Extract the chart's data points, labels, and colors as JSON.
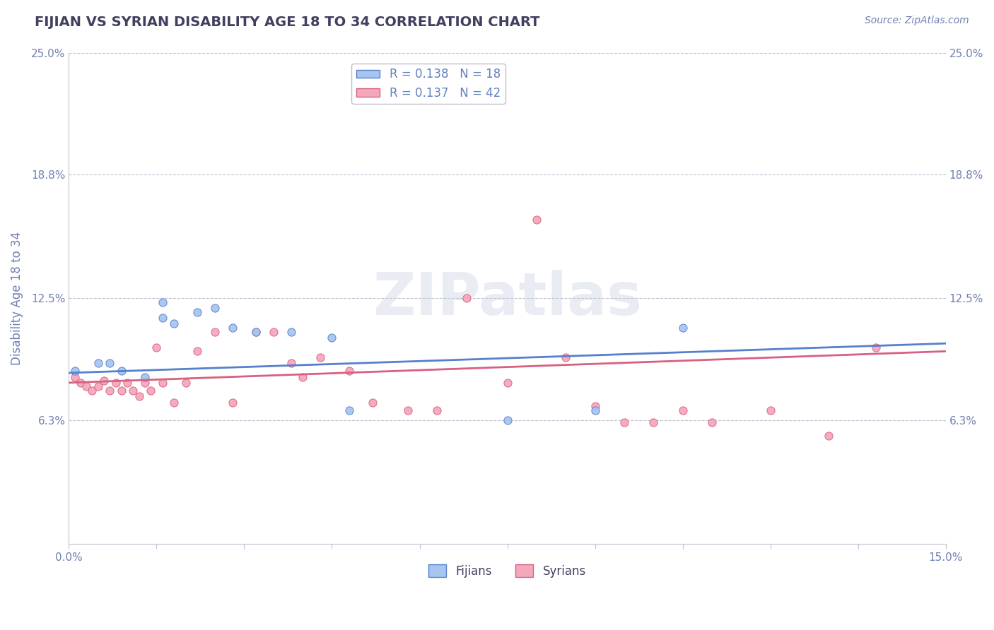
{
  "title": "FIJIAN VS SYRIAN DISABILITY AGE 18 TO 34 CORRELATION CHART",
  "source": "Source: ZipAtlas.com",
  "ylabel_label": "Disability Age 18 to 34",
  "xlim": [
    0.0,
    0.15
  ],
  "ylim": [
    0.0,
    0.25
  ],
  "xticks": [
    0.0,
    0.015,
    0.03,
    0.045,
    0.06,
    0.075,
    0.09,
    0.105,
    0.12,
    0.135,
    0.15
  ],
  "xticklabels": [
    "0.0%",
    "",
    "",
    "",
    "",
    "",
    "",
    "",
    "",
    "",
    "15.0%"
  ],
  "ytick_positions": [
    0.0,
    0.063,
    0.125,
    0.188,
    0.25
  ],
  "yticklabels": [
    "",
    "6.3%",
    "12.5%",
    "18.8%",
    "25.0%"
  ],
  "fijian_color": "#a8c4f0",
  "syrian_color": "#f5a8bc",
  "fijian_line_color": "#5580cc",
  "syrian_line_color": "#d86080",
  "R_fijian": 0.138,
  "N_fijian": 18,
  "R_syrian": 0.137,
  "N_syrian": 42,
  "fijian_scatter_x": [
    0.001,
    0.005,
    0.007,
    0.009,
    0.013,
    0.016,
    0.016,
    0.018,
    0.022,
    0.025,
    0.028,
    0.032,
    0.038,
    0.045,
    0.048,
    0.075,
    0.09,
    0.105
  ],
  "fijian_scatter_y": [
    0.088,
    0.092,
    0.092,
    0.088,
    0.085,
    0.115,
    0.123,
    0.112,
    0.118,
    0.12,
    0.11,
    0.108,
    0.108,
    0.105,
    0.068,
    0.063,
    0.068,
    0.11
  ],
  "syrian_scatter_x": [
    0.001,
    0.002,
    0.003,
    0.004,
    0.005,
    0.006,
    0.007,
    0.008,
    0.009,
    0.01,
    0.011,
    0.012,
    0.013,
    0.014,
    0.015,
    0.016,
    0.018,
    0.02,
    0.022,
    0.025,
    0.028,
    0.032,
    0.035,
    0.038,
    0.04,
    0.043,
    0.048,
    0.052,
    0.058,
    0.063,
    0.068,
    0.075,
    0.08,
    0.085,
    0.09,
    0.095,
    0.1,
    0.105,
    0.11,
    0.12,
    0.13,
    0.138
  ],
  "syrian_scatter_y": [
    0.085,
    0.082,
    0.08,
    0.078,
    0.08,
    0.083,
    0.078,
    0.082,
    0.078,
    0.082,
    0.078,
    0.075,
    0.082,
    0.078,
    0.1,
    0.082,
    0.072,
    0.082,
    0.098,
    0.108,
    0.072,
    0.108,
    0.108,
    0.092,
    0.085,
    0.095,
    0.088,
    0.072,
    0.068,
    0.068,
    0.125,
    0.082,
    0.165,
    0.095,
    0.07,
    0.062,
    0.062,
    0.068,
    0.062,
    0.068,
    0.055,
    0.1
  ],
  "background_color": "#ffffff",
  "grid_color": "#c0c0d0",
  "watermark_text": "ZIPatlas",
  "watermark_color": "#c8d0e0",
  "title_color": "#404060",
  "tick_color": "#7080b0",
  "legend_text_color": "#6080c0"
}
